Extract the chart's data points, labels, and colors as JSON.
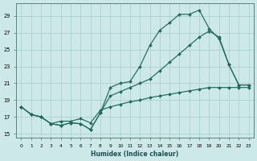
{
  "background_color": "#cce8e8",
  "grid_color": "#a8cccc",
  "line_color": "#1e6b5e",
  "xlabel": "Humidex (Indice chaleur)",
  "xlim": [
    -0.5,
    23.5
  ],
  "ylim": [
    14.5,
    30.5
  ],
  "yticks": [
    15,
    17,
    19,
    21,
    23,
    25,
    27,
    29
  ],
  "xticks": [
    0,
    1,
    2,
    3,
    4,
    5,
    6,
    7,
    8,
    9,
    10,
    11,
    12,
    13,
    14,
    15,
    16,
    17,
    18,
    19,
    20,
    21,
    22,
    23
  ],
  "line1_x": [
    0,
    1,
    2,
    3,
    4,
    5,
    6,
    7,
    8,
    9,
    10,
    11,
    12,
    13,
    14,
    15,
    16,
    17,
    18,
    19,
    20,
    21,
    22,
    23
  ],
  "line1_y": [
    18.2,
    17.3,
    17.0,
    16.2,
    16.0,
    16.3,
    16.2,
    15.5,
    17.5,
    20.5,
    21.0,
    21.2,
    23.0,
    25.5,
    27.3,
    28.2,
    29.2,
    29.2,
    29.7,
    27.5,
    26.3,
    23.2,
    20.8,
    20.8
  ],
  "line2_x": [
    0,
    1,
    2,
    3,
    4,
    5,
    6,
    7,
    8,
    9,
    10,
    11,
    12,
    13,
    14,
    15,
    16,
    17,
    18,
    19,
    20,
    21,
    22,
    23
  ],
  "line2_y": [
    18.2,
    17.3,
    17.0,
    16.2,
    16.0,
    16.3,
    16.2,
    15.5,
    17.5,
    19.5,
    20.0,
    20.5,
    21.0,
    21.5,
    22.5,
    23.5,
    24.5,
    25.5,
    26.5,
    27.2,
    26.5,
    23.2,
    20.8,
    20.8
  ],
  "line3_x": [
    0,
    1,
    2,
    3,
    4,
    5,
    6,
    7,
    8,
    9,
    10,
    11,
    12,
    13,
    14,
    15,
    16,
    17,
    18,
    19,
    20,
    21,
    22,
    23
  ],
  "line3_y": [
    18.2,
    17.3,
    17.0,
    16.2,
    16.5,
    16.5,
    16.8,
    16.3,
    17.8,
    18.2,
    18.5,
    18.8,
    19.0,
    19.3,
    19.5,
    19.7,
    19.9,
    20.1,
    20.3,
    20.5,
    20.5,
    20.5,
    20.5,
    20.5
  ]
}
